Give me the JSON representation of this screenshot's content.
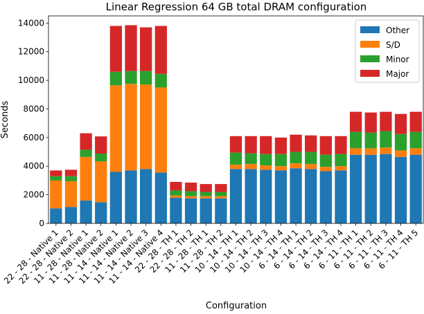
{
  "chart_data": {
    "type": "bar",
    "stacked": true,
    "title": "Linear Regression 64 GB total DRAM configuration",
    "xlabel": "Configuration",
    "ylabel": "Seconds",
    "ylim": [
      0,
      14500
    ],
    "yticks": [
      0,
      2000,
      4000,
      6000,
      8000,
      10000,
      12000,
      14000
    ],
    "grid": false,
    "legend_position": "top-right",
    "categories": [
      "22 - 28 - Native 1",
      "22 - 28 - Native 2",
      "11 - 28 - Native 1",
      "11 - 28 - Native 2",
      "11 - 14 - Native 1",
      "11 - 14 - Native 2",
      "11 - 14 - Native 3",
      "11 - 14 - Native 4",
      "22 - 28 - TH 1",
      "22 - 28 - TH 2",
      "11 - 28 - TH 1",
      "11 - 28 - TH 2",
      "10 - 14 - TH 1",
      "10 - 14 - TH 2",
      "10 - 14 - TH 3",
      "10 - 14 - TH 4",
      "6 - 14 - TH 1",
      "6 - 14 - TH 2",
      "6 - 14 - TH 3",
      "6 - 14 - TH 4",
      "6 - 11 - TH 1",
      "6 - 11 - TH 2",
      "6 - 11 - TH 3",
      "6 - 11 - TH 4",
      "6 - 11 - TH 5"
    ],
    "series": [
      {
        "name": "Other",
        "color": "#1f77b4",
        "values": [
          1050,
          1150,
          1600,
          1480,
          3600,
          3700,
          3800,
          3550,
          1800,
          1750,
          1750,
          1750,
          3800,
          3800,
          3750,
          3700,
          3850,
          3800,
          3650,
          3700,
          4800,
          4800,
          4850,
          4650,
          4800
        ]
      },
      {
        "name": "S/D",
        "color": "#ff7f0e",
        "values": [
          1950,
          1800,
          3050,
          2850,
          6050,
          6050,
          5900,
          5950,
          150,
          150,
          150,
          150,
          300,
          350,
          300,
          300,
          350,
          350,
          300,
          300,
          450,
          450,
          450,
          450,
          450
        ]
      },
      {
        "name": "Minor",
        "color": "#2ca02c",
        "values": [
          300,
          350,
          500,
          550,
          950,
          900,
          950,
          950,
          350,
          350,
          300,
          300,
          850,
          750,
          800,
          850,
          800,
          850,
          850,
          850,
          1150,
          1100,
          1150,
          1150,
          1150
        ]
      },
      {
        "name": "Major",
        "color": "#d62728",
        "values": [
          400,
          450,
          1150,
          1200,
          3200,
          3200,
          3050,
          3350,
          600,
          600,
          550,
          550,
          1150,
          1200,
          1250,
          1150,
          1200,
          1150,
          1300,
          1250,
          1400,
          1400,
          1350,
          1400,
          1400
        ]
      }
    ]
  }
}
